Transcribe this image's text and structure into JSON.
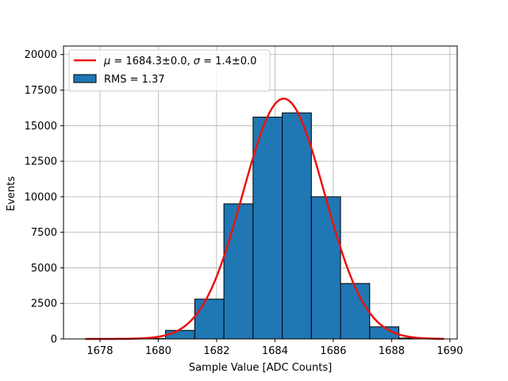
{
  "chart_data": {
    "type": "bar",
    "xlabel": "Sample Value [ADC Counts]",
    "ylabel": "Events",
    "xlim": [
      1676.75,
      1690.25
    ],
    "ylim": [
      0,
      20600
    ],
    "grid": true,
    "legend_position": "top-left",
    "x_ticks": [
      1678,
      1680,
      1682,
      1684,
      1686,
      1688,
      1690
    ],
    "y_ticks": [
      0,
      2500,
      5000,
      7500,
      10000,
      12500,
      15000,
      17500,
      20000
    ],
    "bins": [
      {
        "left": 1677.25,
        "right": 1678.25,
        "count": 0
      },
      {
        "left": 1678.25,
        "right": 1679.25,
        "count": 0
      },
      {
        "left": 1679.25,
        "right": 1680.25,
        "count": 30
      },
      {
        "left": 1680.25,
        "right": 1681.25,
        "count": 600
      },
      {
        "left": 1681.25,
        "right": 1682.25,
        "count": 2800
      },
      {
        "left": 1682.25,
        "right": 1683.25,
        "count": 9500
      },
      {
        "left": 1683.25,
        "right": 1684.25,
        "count": 15600
      },
      {
        "left": 1684.25,
        "right": 1685.25,
        "count": 15900
      },
      {
        "left": 1685.25,
        "right": 1686.25,
        "count": 10000
      },
      {
        "left": 1686.25,
        "right": 1687.25,
        "count": 3900
      },
      {
        "left": 1687.25,
        "right": 1688.25,
        "count": 850
      },
      {
        "left": 1688.25,
        "right": 1689.25,
        "count": 60
      }
    ],
    "fit": {
      "type": "gaussian",
      "mean": 1684.3,
      "sigma": 1.4,
      "amplitude": 16900,
      "x_range": [
        1677.5,
        1689.8
      ]
    },
    "legend": {
      "fit_label_mu_symbol": "μ",
      "fit_label_mu_rest": " = 1684.3±0.0, ",
      "fit_label_sigma_symbol": "σ",
      "fit_label_sigma_rest": " = 1.4±0.0",
      "hist_label": "RMS = 1.37"
    },
    "colors": {
      "bar_fill": "#1f77b4",
      "bar_edge": "#000000",
      "fit_line": "#ee1111",
      "grid": "#b0b0b0"
    }
  }
}
